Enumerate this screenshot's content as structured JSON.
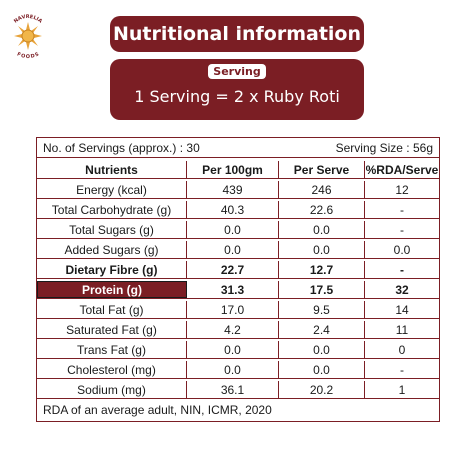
{
  "brand": {
    "arc_text": "NAVRELIA FOODS",
    "colors": {
      "primary": "#7b1e24",
      "sun": "#e8a33a"
    }
  },
  "header": {
    "title": "Nutritional information"
  },
  "serving": {
    "chip": "Serving",
    "text": "1 Serving = 2 x Ruby Roti"
  },
  "table": {
    "servings_approx": "No. of Servings (approx.) : 30",
    "serving_size": "Serving Size : 56g",
    "columns": [
      "Nutrients",
      "Per 100gm",
      "Per Serve",
      "%RDA/Serve"
    ],
    "rows": [
      [
        "Energy (kcal)",
        "439",
        "246",
        "12"
      ],
      [
        "Total Carbohydrate (g)",
        "40.3",
        "22.6",
        "-"
      ],
      [
        "Total Sugars (g)",
        "0.0",
        "0.0",
        "-"
      ],
      [
        "Added Sugars (g)",
        "0.0",
        "0.0",
        "0.0"
      ],
      [
        "Dietary Fibre (g)",
        "22.7",
        "12.7",
        "-"
      ],
      [
        "Protein (g)",
        "31.3",
        "17.5",
        "32"
      ],
      [
        "Total Fat (g)",
        "17.0",
        "9.5",
        "14"
      ],
      [
        "Saturated Fat (g)",
        "4.2",
        "2.4",
        "11"
      ],
      [
        "Trans Fat (g)",
        "0.0",
        "0.0",
        "0"
      ],
      [
        "Cholesterol (mg)",
        "0.0",
        "0.0",
        "-"
      ],
      [
        "Sodium (mg)",
        "36.1",
        "20.2",
        "1"
      ]
    ],
    "footnote": "RDA of an average adult, NIN, ICMR, 2020"
  }
}
